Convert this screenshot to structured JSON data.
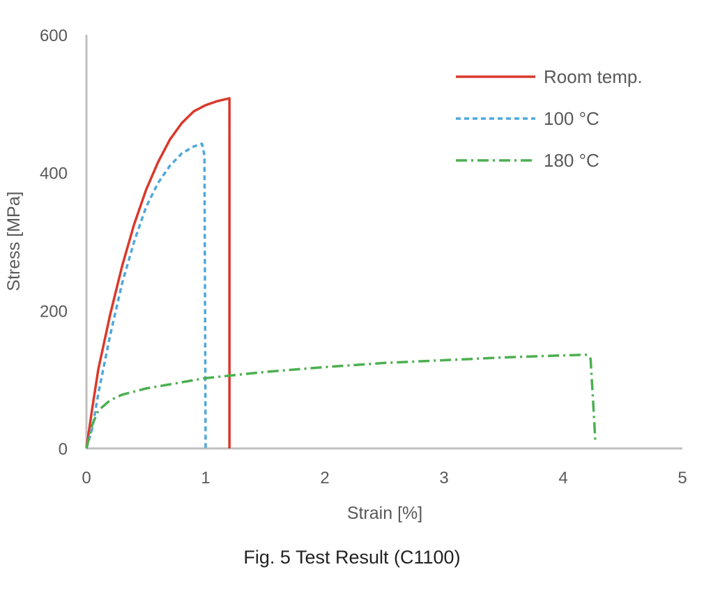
{
  "caption": "Fig. 5 Test Result (C1100)",
  "chart_data": {
    "type": "line",
    "title": "",
    "xlabel": "Strain [%]",
    "ylabel": "Stress [MPa]",
    "xlim": [
      0,
      5
    ],
    "ylim": [
      0,
      600
    ],
    "xticks": [
      "0",
      "1",
      "2",
      "3",
      "4",
      "5"
    ],
    "yticks": [
      "0",
      "200",
      "400",
      "600"
    ],
    "grid": false,
    "legend_position": "top-right",
    "series": [
      {
        "name": "Room temp.",
        "color": "#d9392b",
        "style": "solid",
        "x": [
          0,
          0.05,
          0.1,
          0.2,
          0.3,
          0.4,
          0.5,
          0.6,
          0.7,
          0.8,
          0.9,
          1.0,
          1.1,
          1.2,
          1.2
        ],
        "y": [
          0,
          60,
          115,
          195,
          265,
          325,
          375,
          415,
          448,
          472,
          489,
          498,
          504,
          508,
          0
        ]
      },
      {
        "name": "100 °C",
        "color": "#4fa8dc",
        "style": "dashed",
        "x": [
          0,
          0.05,
          0.1,
          0.2,
          0.3,
          0.4,
          0.5,
          0.6,
          0.7,
          0.8,
          0.9,
          0.97,
          0.99,
          1.0
        ],
        "y": [
          0,
          30,
          80,
          165,
          240,
          300,
          350,
          385,
          410,
          428,
          438,
          442,
          425,
          0
        ]
      },
      {
        "name": "180 °C",
        "color": "#4caf50",
        "style": "dashdot",
        "x": [
          0,
          0.05,
          0.1,
          0.2,
          0.3,
          0.5,
          0.7,
          1.0,
          1.5,
          2.0,
          2.5,
          3.0,
          3.5,
          4.0,
          4.2,
          4.23,
          4.25,
          4.27
        ],
        "y": [
          0,
          35,
          55,
          70,
          78,
          87,
          93,
          102,
          111,
          118,
          124,
          128,
          132,
          135,
          136,
          130,
          70,
          8
        ]
      }
    ]
  }
}
